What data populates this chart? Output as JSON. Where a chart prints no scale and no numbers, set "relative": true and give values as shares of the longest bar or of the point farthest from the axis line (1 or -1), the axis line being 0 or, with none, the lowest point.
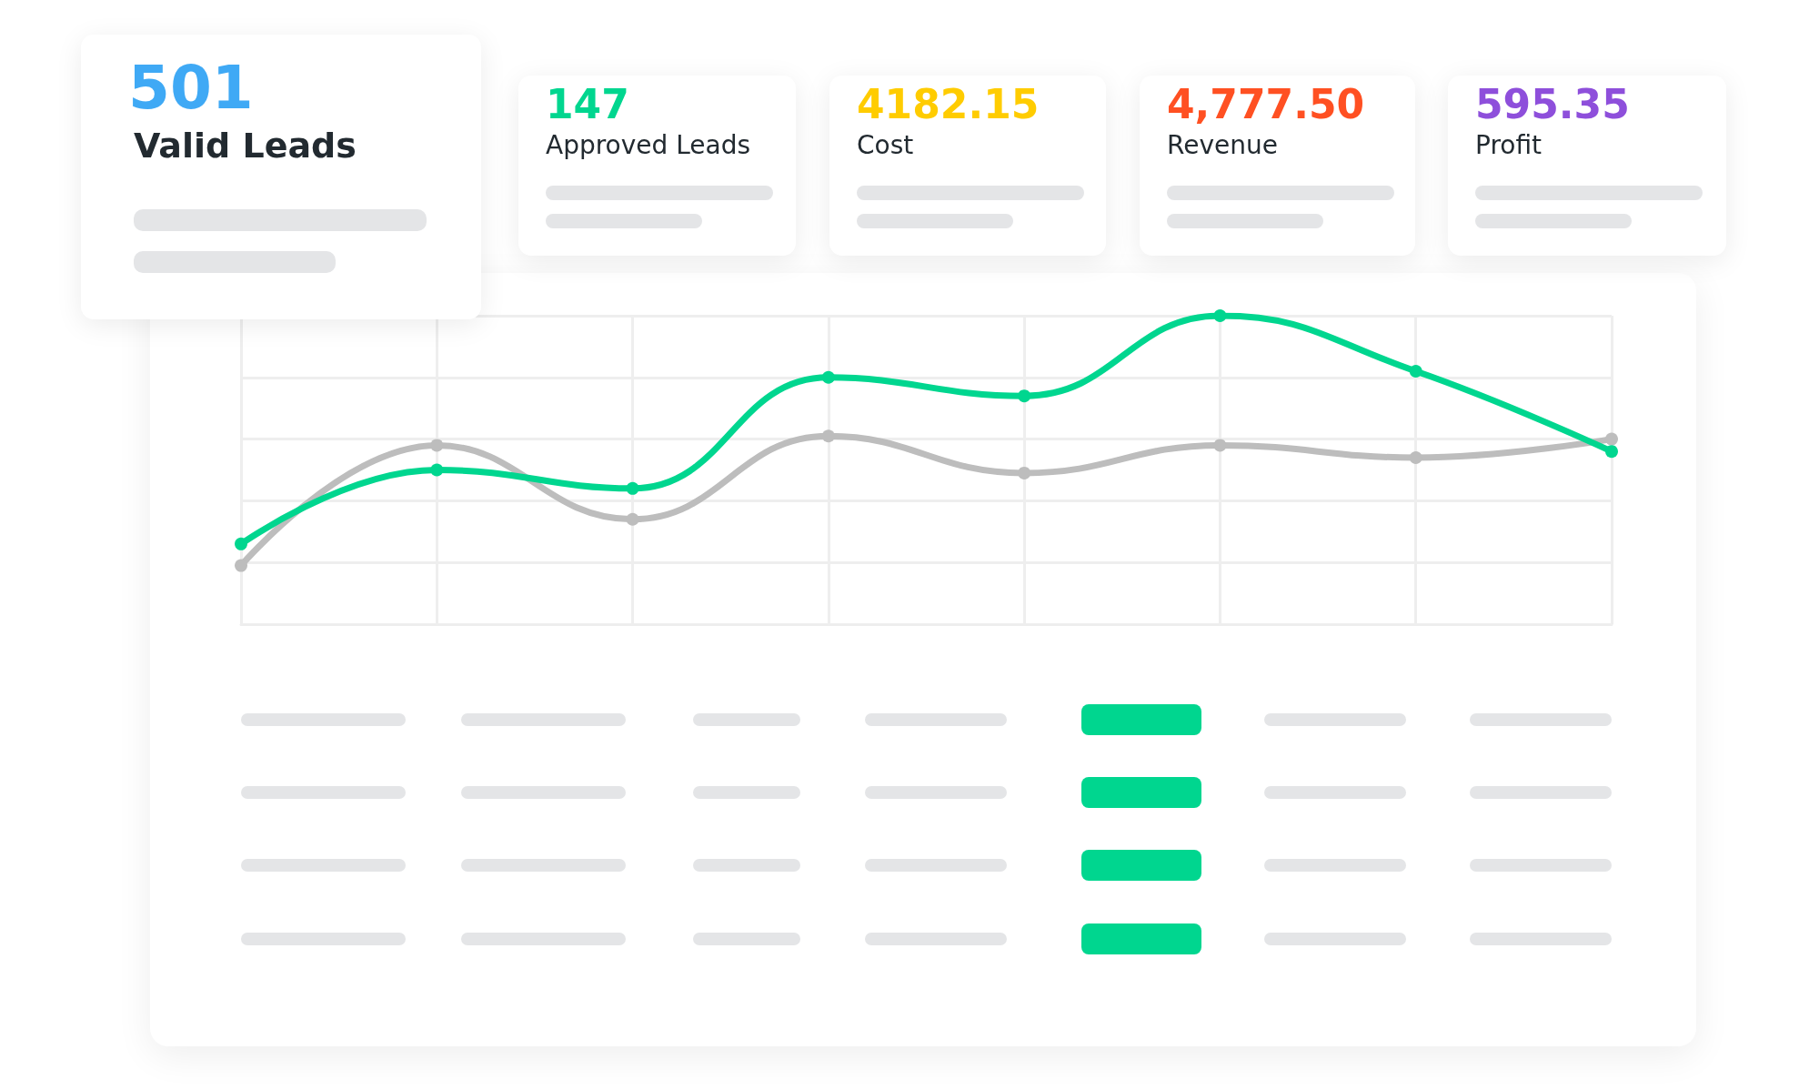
{
  "chart_data": [
    {
      "type": "other",
      "title": "501",
      "subtitle": "Valid Leads",
      "color": "#3fa9f5"
    },
    {
      "type": "other",
      "title": "147",
      "subtitle": "Approved Leads",
      "color": "#00d68f"
    },
    {
      "type": "other",
      "title": "4182.15",
      "subtitle": "Cost",
      "color": "#ffcc00"
    },
    {
      "type": "other",
      "title": "4,777.50",
      "subtitle": "Revenue",
      "color": "#ff5022"
    },
    {
      "type": "other",
      "title": "595.35",
      "subtitle": "Profit",
      "color": "#8e4fdb"
    },
    {
      "type": "line",
      "relative": true,
      "categories": [
        null,
        null,
        null,
        null,
        null,
        null,
        null,
        null
      ],
      "grid": true,
      "marker": "circle",
      "line_style": "solid",
      "series": [
        {
          "color": "#bdbdbd",
          "values": [
            0.19,
            0.58,
            0.34,
            0.61,
            0.49,
            0.58,
            0.54,
            0.6
          ]
        },
        {
          "color": "#00d68f",
          "values": [
            0.26,
            0.5,
            0.44,
            0.8,
            0.74,
            1,
            0.82,
            0.56
          ]
        }
      ]
    }
  ]
}
